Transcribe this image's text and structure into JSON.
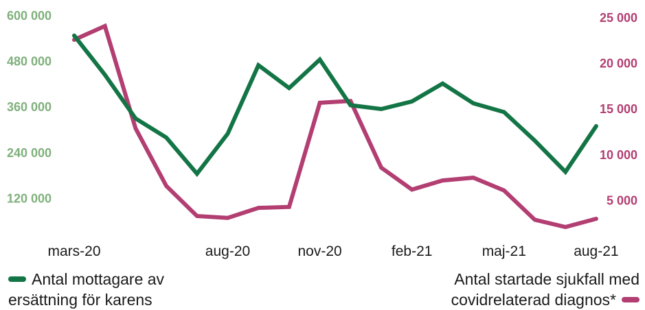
{
  "colors": {
    "green": "#137545",
    "green_axis": "#7fb07c",
    "magenta": "#b23e72",
    "magenta_axis": "#b23e72",
    "text": "#1a1a1a"
  },
  "chart_data": {
    "type": "line",
    "x": [
      "mars-20",
      "apr-20",
      "maj-20",
      "jun-20",
      "jul-20",
      "aug-20",
      "sep-20",
      "okt-20",
      "nov-20",
      "dec-20",
      "jan-21",
      "feb-21",
      "mar-21",
      "apr-21",
      "maj-21",
      "jun-21",
      "jul-21",
      "aug-21"
    ],
    "x_tick_labels": [
      "mars-20",
      "aug-20",
      "nov-20",
      "feb-21",
      "maj-21",
      "aug-21"
    ],
    "series": [
      {
        "name": "Antal mottagare av ersättning för karens",
        "axis": "left",
        "values": [
          548000,
          445000,
          330000,
          280000,
          185000,
          290000,
          470000,
          410000,
          485000,
          365000,
          355000,
          375000,
          422000,
          370000,
          347000,
          272000,
          190000,
          310000
        ]
      },
      {
        "name": "Antal startade sjukfall med covidrelaterad diagnos*",
        "axis": "right",
        "values": [
          22600,
          24100,
          12900,
          6600,
          3300,
          3100,
          4200,
          4300,
          15700,
          15900,
          8600,
          6200,
          7200,
          7500,
          6100,
          2900,
          2100,
          3000
        ]
      }
    ],
    "left_axis": {
      "ticks": [
        120000,
        240000,
        360000,
        480000,
        600000
      ],
      "tick_labels": [
        "120 000",
        "240 000",
        "360 000",
        "480 000",
        "600 000"
      ],
      "range": [
        0,
        600000
      ]
    },
    "right_axis": {
      "ticks": [
        5000,
        10000,
        15000,
        20000,
        25000
      ],
      "tick_labels": [
        "5 000",
        "10 000",
        "15 000",
        "20 000",
        "25 000"
      ],
      "range": [
        0,
        25000
      ]
    },
    "grid": false
  },
  "legend": {
    "left_label": "Antal mottagare av\nersättning för karens",
    "right_label": "Antal startade sjukfall med\ncovidrelaterad diagnos*"
  }
}
